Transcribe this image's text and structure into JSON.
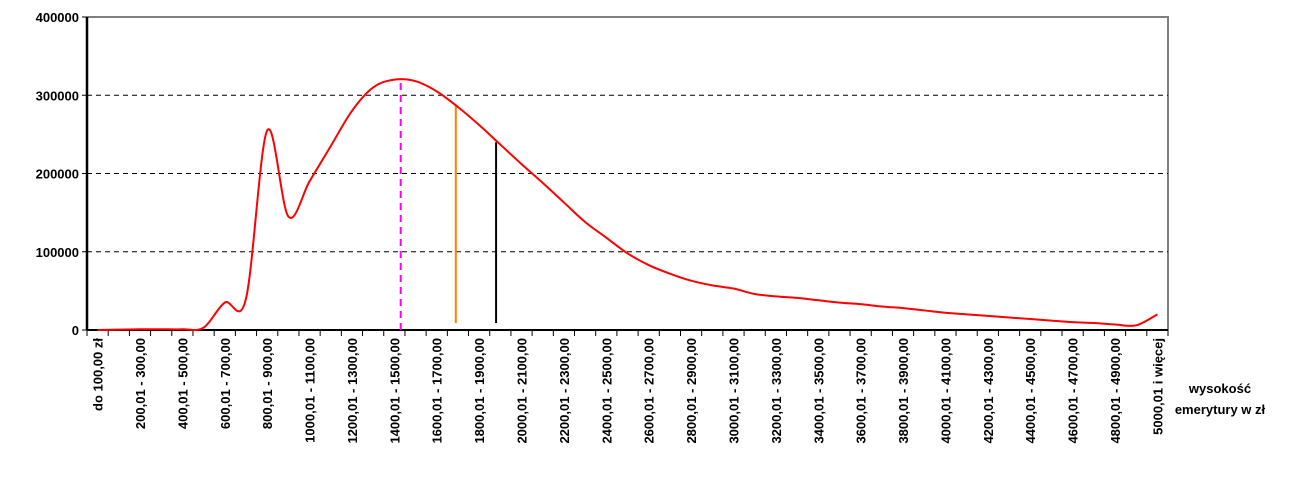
{
  "chart_data": {
    "type": "line",
    "x_label": "wysokość emerytury w zł",
    "categories": [
      "do 100,00 zł",
      null,
      "200,01 - 300,00",
      null,
      "400,01 - 500,00",
      null,
      "600,01 - 700,00",
      null,
      "800,01 - 900,00",
      null,
      "1000,01 - 1100,00",
      null,
      "1200,01 - 1300,00",
      null,
      "1400,01 - 1500,00",
      null,
      "1600,01 - 1700,00",
      null,
      "1800,01 - 1900,00",
      null,
      "2000,01 - 2100,00",
      null,
      "2200,01 - 2300,00",
      null,
      "2400,01 - 2500,00",
      null,
      "2600,01 - 2700,00",
      null,
      "2800,01 - 2900,00",
      null,
      "3000,01 - 3100,00",
      null,
      "3200,01 - 3300,00",
      null,
      "3400,01 - 3500,00",
      null,
      "3600,01 - 3700,00",
      null,
      "3800,01 - 3900,00",
      null,
      "4000,01 - 4100,00",
      null,
      "4200,01 - 4300,00",
      null,
      "4400,01 - 4500,00",
      null,
      "4600,01 - 4700,00",
      null,
      "4800,01 - 4900,00",
      null,
      "5000,01 i więcej"
    ],
    "series": [
      {
        "color": "#ff0000",
        "values": [
          0,
          500,
          1000,
          1000,
          1000,
          3000,
          35000,
          40000,
          255000,
          145000,
          190000,
          235000,
          280000,
          310000,
          320000,
          318000,
          305000,
          285000,
          262000,
          237000,
          212000,
          188000,
          163000,
          138000,
          118000,
          98000,
          83000,
          72000,
          63000,
          57000,
          53000,
          46000,
          43000,
          41000,
          38000,
          35000,
          33000,
          30000,
          28000,
          25000,
          22000,
          20000,
          18000,
          16000,
          14000,
          12000,
          10000,
          9000,
          7000,
          6000,
          20000
        ]
      }
    ],
    "markers": [
      {
        "x": 14.3,
        "bottom": 0,
        "top": 320000,
        "color": "#ff00ff",
        "dashed": true
      },
      {
        "x": 16.9,
        "bottom": 9000,
        "top": 288000,
        "color": "#ff8000",
        "dashed": false
      },
      {
        "x": 18.8,
        "bottom": 9000,
        "top": 240000,
        "color": "#000000",
        "dashed": false
      }
    ],
    "ylim": [
      0,
      400000
    ],
    "yticks": [
      0,
      100000,
      200000,
      300000,
      400000
    ],
    "grid": true
  }
}
